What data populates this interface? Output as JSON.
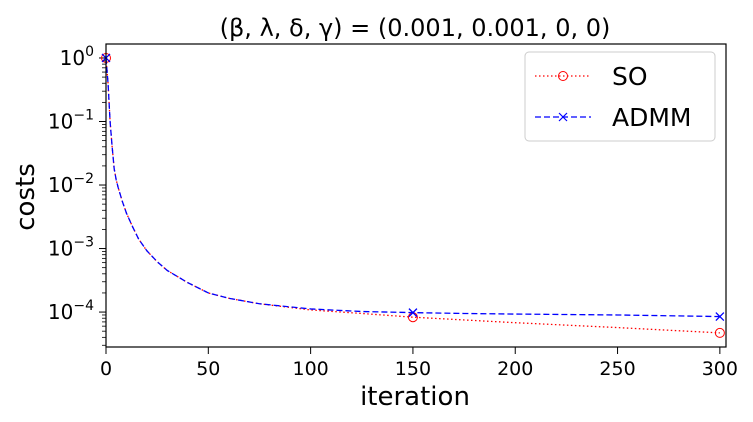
{
  "chart_data": {
    "type": "line",
    "title": "(β, λ, δ, γ) = (0.001, 0.001, 0, 0)",
    "xlabel": "iteration",
    "ylabel": "costs",
    "xlim": [
      0,
      303
    ],
    "ylim_log10": [
      -4.55,
      0.22
    ],
    "yscale": "log",
    "grid": false,
    "legend_position": "top-right",
    "x_ticks": [
      0,
      50,
      100,
      150,
      200,
      250,
      300
    ],
    "y_ticks": [
      {
        "base": "10",
        "exp": "0",
        "value": 1
      },
      {
        "base": "10",
        "exp": "−1",
        "value": 0.1
      },
      {
        "base": "10",
        "exp": "−2",
        "value": 0.01
      },
      {
        "base": "10",
        "exp": "−3",
        "value": 0.001
      },
      {
        "base": "10",
        "exp": "−4",
        "value": 0.0001
      }
    ],
    "series": [
      {
        "name": "SO",
        "color": "#ff0000",
        "line_style": "dotted",
        "marker": "circle",
        "x": [
          0,
          1,
          2,
          3,
          4,
          5,
          6,
          8,
          10,
          13,
          16,
          20,
          25,
          30,
          40,
          50,
          60,
          75,
          100,
          125,
          150,
          200,
          250,
          300
        ],
        "y": [
          1.0,
          0.4,
          0.1,
          0.04,
          0.018,
          0.012,
          0.009,
          0.0055,
          0.0036,
          0.0022,
          0.0014,
          0.00092,
          0.00062,
          0.00045,
          0.00029,
          0.0002,
          0.000165,
          0.000135,
          0.000108,
          9.5e-05,
          8.3e-05,
          6.8e-05,
          5.7e-05,
          4.7e-05
        ],
        "marker_x": [
          0,
          150,
          300
        ],
        "marker_y": [
          1.0,
          8.3e-05,
          4.7e-05
        ]
      },
      {
        "name": "ADMM",
        "color": "#0000ff",
        "line_style": "dashed",
        "marker": "x",
        "x": [
          0,
          1,
          2,
          3,
          4,
          5,
          6,
          8,
          10,
          13,
          16,
          20,
          25,
          30,
          40,
          50,
          60,
          75,
          100,
          125,
          150,
          175,
          200,
          250,
          300
        ],
        "y": [
          1.0,
          0.4,
          0.1,
          0.04,
          0.018,
          0.012,
          0.009,
          0.0055,
          0.0036,
          0.0022,
          0.0014,
          0.00092,
          0.00062,
          0.00045,
          0.00029,
          0.0002,
          0.000165,
          0.000135,
          0.000112,
          0.000102,
          9.8e-05,
          9.5e-05,
          9.3e-05,
          9e-05,
          8.5e-05
        ],
        "marker_x": [
          0,
          150,
          300
        ],
        "marker_y": [
          1.0,
          9.8e-05,
          8.5e-05
        ]
      }
    ]
  }
}
